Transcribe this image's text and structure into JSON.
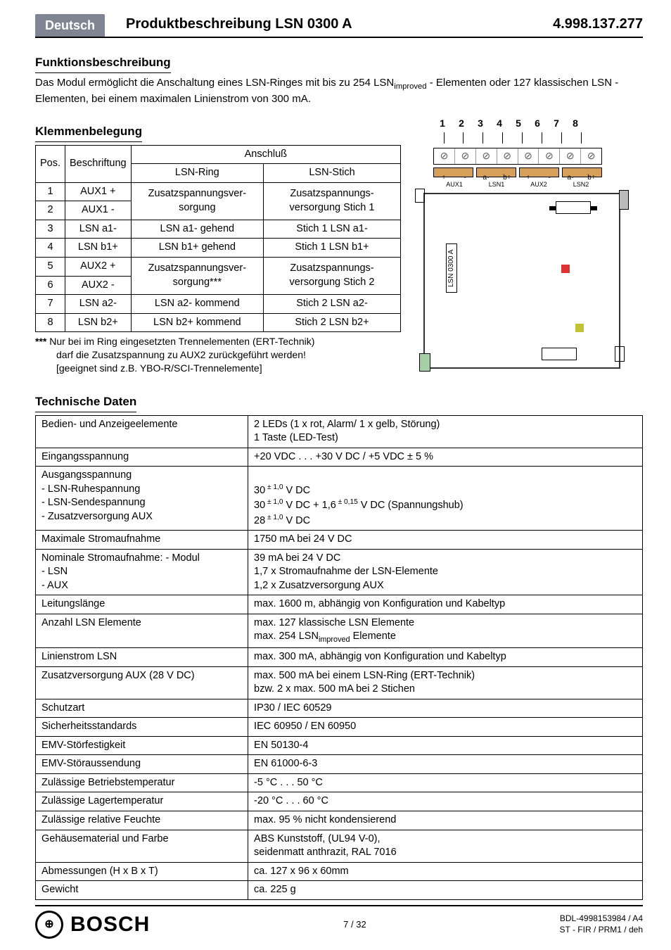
{
  "header": {
    "lang_badge": "Deutsch",
    "title": "Produktbeschreibung LSN 0300 A",
    "code": "4.998.137.277"
  },
  "sections": {
    "func_h": "Funktionsbeschreibung",
    "func_p1": "Das Modul ermöglicht die Anschaltung eines LSN-Ringes mit bis zu 254 LSN",
    "func_sub": "improved",
    "func_p2": " - Elementen oder 127 klassischen LSN - Elementen, bei einem maximalen Linienstrom von 300 mA.",
    "klem_h": "Klemmenbelegung",
    "tech_h": "Technische Daten"
  },
  "term_table": {
    "head_pos": "Pos.",
    "head_besch": "Beschriftung",
    "head_ansch": "Anschluß",
    "head_ring": "LSN-Ring",
    "head_stich": "LSN-Stich",
    "r1_pos": "1",
    "r1_b": "AUX1 +",
    "r12_ring": "Zusatzspannungsver-sorgung",
    "r12_st": "Zusatzspannungs-versorgung Stich 1",
    "r2_pos": "2",
    "r2_b": "AUX1 -",
    "r3_pos": "3",
    "r3_b": "LSN a1-",
    "r3_ring": "LSN a1-  gehend",
    "r3_st": "Stich 1 LSN a1-",
    "r4_pos": "4",
    "r4_b": "LSN b1+",
    "r4_ring": "LSN b1+  gehend",
    "r4_st": "Stich 1 LSN b1+",
    "r5_pos": "5",
    "r5_b": "AUX2 +",
    "r56_ring": "Zusatzspannungsver-sorgung***",
    "r56_st": "Zusatzspannungs-versorgung Stich 2",
    "r6_pos": "6",
    "r6_b": "AUX2 -",
    "r7_pos": "7",
    "r7_b": "LSN a2-",
    "r7_ring": "LSN a2- kommend",
    "r7_st": "Stich 2 LSN a2-",
    "r8_pos": "8",
    "r8_b": "LSN b2+",
    "r8_ring": "LSN b2+ kommend",
    "r8_st": "Stich 2 LSN b2+"
  },
  "note": {
    "stars": "***",
    "l1": " Nur bei im Ring eingesetzten Trennelementen (ERT-Technik)",
    "l2": "darf die Zusatzspannung zu AUX2 zurückgeführt werden!",
    "l3": "[geeignet sind z.B. YBO-R/SCI-Trennelemente]"
  },
  "diagram": {
    "nums": [
      "1",
      "2",
      "3",
      "4",
      "5",
      "6",
      "7",
      "8"
    ],
    "signs": [
      "+",
      "-",
      "a-",
      "b+",
      "+",
      "-",
      "a-",
      "b+"
    ],
    "labels": [
      "AUX1",
      "LSN1",
      "AUX2",
      "LSN2"
    ],
    "vlabel": "LSN 0300 A"
  },
  "tech": [
    {
      "l": "Bedien- und Anzeigeelemente",
      "r": "2 LEDs (1 x rot, Alarm/ 1 x gelb, Störung)\n1 Taste (LED-Test)"
    },
    {
      "l": "Eingangsspannung",
      "r": "+20 VDC . . . +30 V DC / +5 VDC  ± 5 %"
    },
    {
      "l": "Ausgangsspannung\n   - LSN-Ruhespannung\n   - LSN-Sendespannung\n   - Zusatzversorgung AUX",
      "r": "\n30 ± 1,0 V DC\n30 ± 1,0 V DC + 1,6 ± 0,15 V DC (Spannungshub)\n28 ± 1,0 V DC",
      "sup": true
    },
    {
      "l": "Maximale Stromaufnahme",
      "r": "1750 mA  bei 24 V DC"
    },
    {
      "l": "Nominale Stromaufnahme:   - Modul\n                                          - LSN\n                                          - AUX",
      "r": "39 mA  bei 24 V DC\n1,7 x Stromaufnahme der LSN-Elemente\n1,2 x Zusatzversorgung AUX"
    },
    {
      "l": "Leitungslänge",
      "r": "max. 1600 m, abhängig von Konfiguration und Kabeltyp"
    },
    {
      "l": "Anzahl LSN Elemente",
      "r": "max. 127 klassische LSN Elemente\nmax. 254 LSNimproved Elemente",
      "subidx": true
    },
    {
      "l": "Linienstrom LSN",
      "r": "max. 300 mA, abhängig von Konfiguration und Kabeltyp"
    },
    {
      "l": "Zusatzversorgung AUX (28 V DC)",
      "r": "max. 500 mA bei einem LSN-Ring (ERT-Technik)\nbzw. 2 x max. 500 mA bei 2 Stichen"
    },
    {
      "l": "Schutzart",
      "r": "IP30 / IEC 60529"
    },
    {
      "l": "Sicherheitsstandards",
      "r": "IEC 60950 / EN 60950"
    },
    {
      "l": "EMV-Störfestigkeit",
      "r": "EN 50130-4"
    },
    {
      "l": "EMV-Störaussendung",
      "r": "EN 61000-6-3"
    },
    {
      "l": "Zulässige Betriebstemperatur",
      "r": "-5 °C . . . 50 °C"
    },
    {
      "l": "Zulässige Lagertemperatur",
      "r": "-20 °C . . . 60 °C"
    },
    {
      "l": "Zulässige relative Feuchte",
      "r": "max. 95 %  nicht kondensierend"
    },
    {
      "l": "Gehäusematerial und Farbe",
      "r": "ABS Kunststoff, (UL94 V-0),\nseidenmatt anthrazit, RAL 7016"
    },
    {
      "l": "Abmessungen  (H x B x T)",
      "r": "ca. 127 x 96 x 60mm"
    },
    {
      "l": "Gewicht",
      "r": "ca. 225 g"
    }
  ],
  "footer": {
    "logo": "BOSCH",
    "page": "7 / 32",
    "r1": "BDL-4998153984 / A4",
    "r2": "ST - FIR / PRM1 / deh"
  },
  "colors": {
    "badge_bg": "#808691",
    "conn_bg": "#d6a05a",
    "led_red": "#d33",
    "led_yel": "#c2c235",
    "usb_green": "#a5cfa5"
  }
}
